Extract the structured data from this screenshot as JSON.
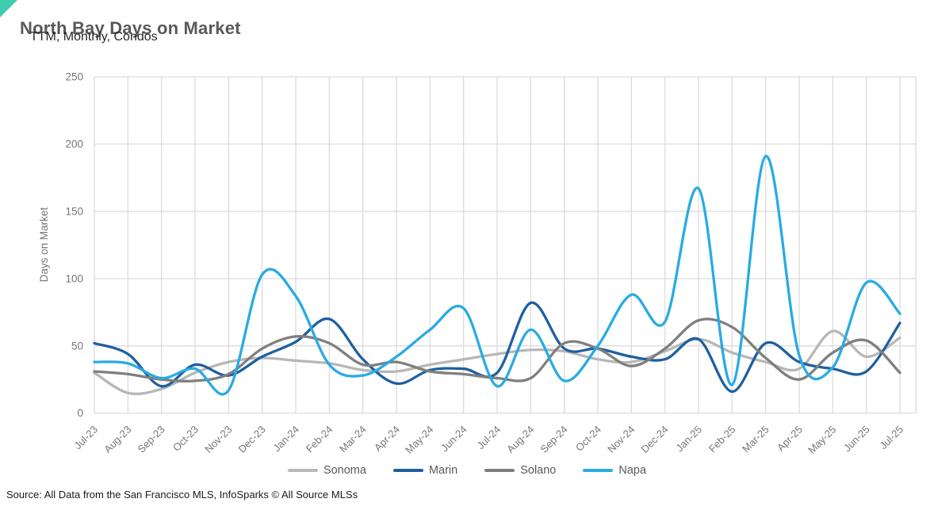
{
  "header": {
    "title": "North Bay Days on Market",
    "subtitle": "TTM, Monthly, Condos"
  },
  "footer": {
    "source": "Source: All Data from the San Francisco MLS, InfoSparks © All Source MLSs"
  },
  "colors": {
    "accent_corner": "#3fcdad",
    "grid": "#d9d9d9",
    "tick_text": "#767676",
    "title_text": "#595959",
    "legend_text": "#595959"
  },
  "chart_data": {
    "type": "line",
    "title": "North Bay Days on Market",
    "subtitle": "TTM, Monthly, Condos",
    "xlabel": "",
    "ylabel": "Days on Market",
    "ylim": [
      0,
      250
    ],
    "yticks": [
      0,
      50,
      100,
      150,
      200,
      250
    ],
    "grid": true,
    "smoothed": true,
    "legend_position": "bottom",
    "x": [
      "Jul-23",
      "Aug-23",
      "Sep-23",
      "Oct-23",
      "Nov-23",
      "Dec-23",
      "Jan-24",
      "Feb-24",
      "Mar-24",
      "Apr-24",
      "May-24",
      "Jun-24",
      "Jul-24",
      "Aug-24",
      "Sep-24",
      "Oct-24",
      "Nov-24",
      "Dec-24",
      "Jan-25",
      "Feb-25",
      "Mar-25",
      "Apr-25",
      "May-25",
      "Jun-25",
      "Jul-25"
    ],
    "series": [
      {
        "name": "Sonoma",
        "color": "#b7b7b7",
        "values": [
          30,
          15,
          18,
          30,
          38,
          41,
          39,
          37,
          32,
          31,
          36,
          40,
          44,
          47,
          46,
          40,
          38,
          46,
          55,
          45,
          38,
          33,
          61,
          42,
          56
        ]
      },
      {
        "name": "Marin",
        "color": "#1f5fa0",
        "values": [
          52,
          44,
          20,
          36,
          28,
          42,
          53,
          70,
          40,
          22,
          32,
          33,
          30,
          82,
          48,
          48,
          42,
          40,
          55,
          16,
          52,
          38,
          33,
          31,
          67
        ]
      },
      {
        "name": "Solano",
        "color": "#7f7f7f",
        "values": [
          31,
          29,
          25,
          24,
          29,
          48,
          57,
          52,
          36,
          38,
          31,
          29,
          26,
          26,
          52,
          48,
          35,
          48,
          69,
          64,
          41,
          25,
          45,
          54,
          30
        ]
      },
      {
        "name": "Napa",
        "color": "#29abe2",
        "values": [
          38,
          37,
          26,
          33,
          17,
          103,
          87,
          36,
          28,
          42,
          62,
          78,
          20,
          62,
          24,
          50,
          88,
          68,
          167,
          21,
          191,
          43,
          34,
          97,
          74
        ]
      }
    ]
  }
}
